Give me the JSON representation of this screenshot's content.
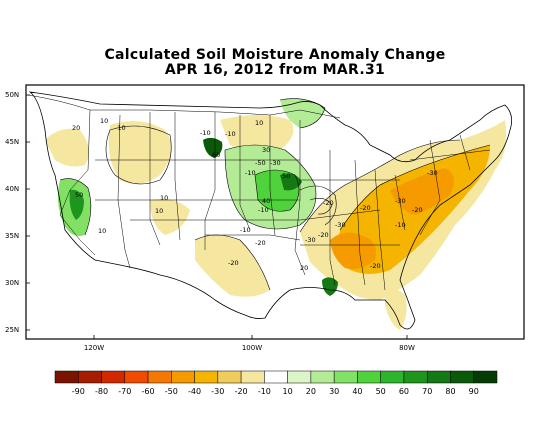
{
  "title_line1": "Calculated Soil Moisture Anomaly Change",
  "title_line2": "APR 16, 2012 from MAR.31",
  "latitude_labels": [
    "50N",
    "45N",
    "40N",
    "35N",
    "30N",
    "25N"
  ],
  "longitude_labels": [
    "120W",
    "100W",
    "80W"
  ],
  "legend": {
    "labels": [
      "-90",
      "-80",
      "-70",
      "-60",
      "-50",
      "-40",
      "-30",
      "-20",
      "-10",
      "10",
      "20",
      "30",
      "40",
      "50",
      "60",
      "70",
      "80",
      "90"
    ],
    "colors": [
      "#7a1400",
      "#a51e00",
      "#d22800",
      "#f04b00",
      "#f57800",
      "#f59b00",
      "#f5b400",
      "#f0cd5a",
      "#f5e6a0",
      "#ffffff",
      "#dcf5c8",
      "#b4eb96",
      "#82e164",
      "#50d23c",
      "#2db42d",
      "#1e961e",
      "#147814",
      "#0a5a0a",
      "#053c05"
    ]
  },
  "contour_labels": [
    {
      "text": "20"
    },
    {
      "text": "-10"
    },
    {
      "text": "-10"
    },
    {
      "text": "10"
    },
    {
      "text": "50"
    },
    {
      "text": "60"
    },
    {
      "text": "-10"
    },
    {
      "text": "10"
    },
    {
      "text": "30"
    },
    {
      "text": "-50"
    },
    {
      "text": "-30"
    },
    {
      "text": "-10"
    },
    {
      "text": "50"
    },
    {
      "text": "40"
    },
    {
      "text": "10"
    },
    {
      "text": "10"
    },
    {
      "text": "-10"
    },
    {
      "text": "-20"
    },
    {
      "text": "-10"
    },
    {
      "text": "-20"
    },
    {
      "text": "-20"
    },
    {
      "text": "-30"
    },
    {
      "text": "-30"
    },
    {
      "text": "-20"
    },
    {
      "text": "-30"
    },
    {
      "text": "-20"
    },
    {
      "text": "-30"
    },
    {
      "text": "-10"
    },
    {
      "text": "-20"
    },
    {
      "text": "20"
    },
    {
      "text": "-20"
    },
    {
      "text": "10"
    }
  ]
}
